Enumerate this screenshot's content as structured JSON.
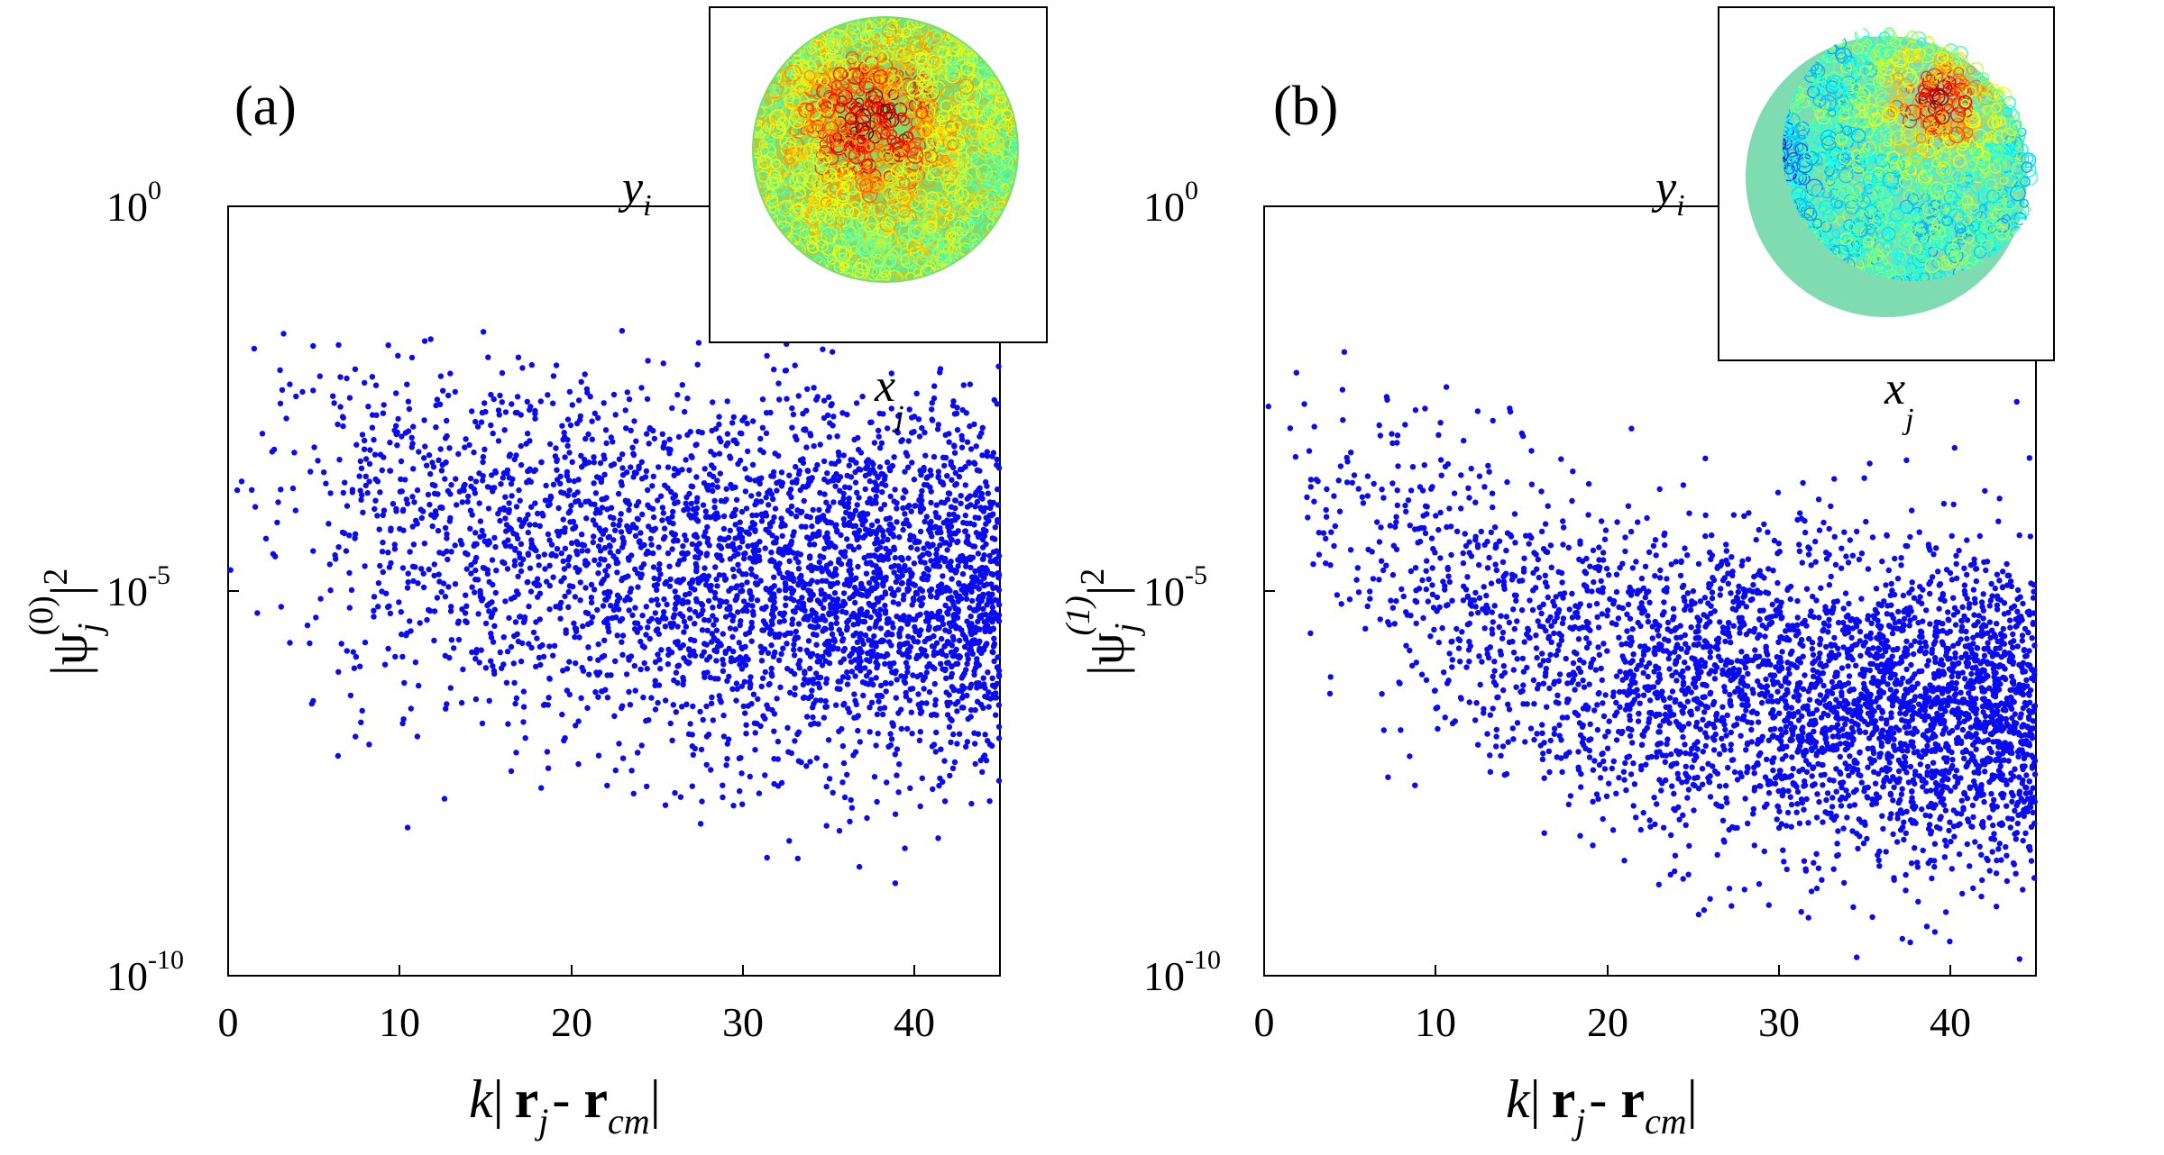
{
  "figure": {
    "x_axis_label": {
      "k": "k",
      "bar": "|",
      "r_main": "r",
      "r_sub": "j",
      "minus": "- ",
      "r_cm": "r",
      "cm_sub": "cm",
      "bar_end": "|"
    }
  },
  "chart_data": [
    {
      "type": "scatter",
      "panel_label": "(a)",
      "ylabel": {
        "base": "|ψ",
        "sub": "j",
        "sup": "(0)",
        "bar": "|",
        "pow": "2"
      },
      "xlabel": "k| r_j - r_cm|",
      "x_ticks": [
        "0",
        "10",
        "20",
        "30",
        "40"
      ],
      "y_ticks": [
        {
          "base": "10",
          "exp": "0"
        },
        {
          "base": "10",
          "exp": "-5"
        },
        {
          "base": "10",
          "exp": "-10"
        }
      ],
      "xlim": [
        0,
        45
      ],
      "ylim_log10": [
        -10,
        0
      ],
      "marker_color": "#0b0bf0",
      "scatter_model": {
        "peak_log10": -5.1,
        "near_log10": -2.8,
        "near_decay": 14,
        "spread": 1.2,
        "n_points": 3600,
        "seed": 11
      },
      "inset": {
        "xlabel": "x",
        "xsub": "j",
        "ylabel": "y",
        "ysub": "i",
        "colormap": "jet",
        "hotspots": "center"
      }
    },
    {
      "type": "scatter",
      "panel_label": "(b)",
      "ylabel": {
        "base": "|ψ",
        "sub": "j",
        "sup": "(1)",
        "bar": "|",
        "pow": "2"
      },
      "xlabel": "k| r_j - r_cm|",
      "x_ticks": [
        "0",
        "10",
        "20",
        "30",
        "40"
      ],
      "y_ticks": [
        {
          "base": "10",
          "exp": "0"
        },
        {
          "base": "10",
          "exp": "-5"
        },
        {
          "base": "10",
          "exp": "-10"
        }
      ],
      "xlim": [
        0,
        45
      ],
      "ylim_log10": [
        -10,
        0
      ],
      "marker_color": "#0b0bf0",
      "scatter_model": {
        "peak_log10": -6.7,
        "near_log10": -2.6,
        "near_decay": 12,
        "spread": 1.0,
        "n_points": 3600,
        "seed": 29
      },
      "inset": {
        "xlabel": "x",
        "xsub": "j",
        "ylabel": "y",
        "ysub": "i",
        "colormap": "jet",
        "hotspots": "upper-right"
      }
    }
  ]
}
